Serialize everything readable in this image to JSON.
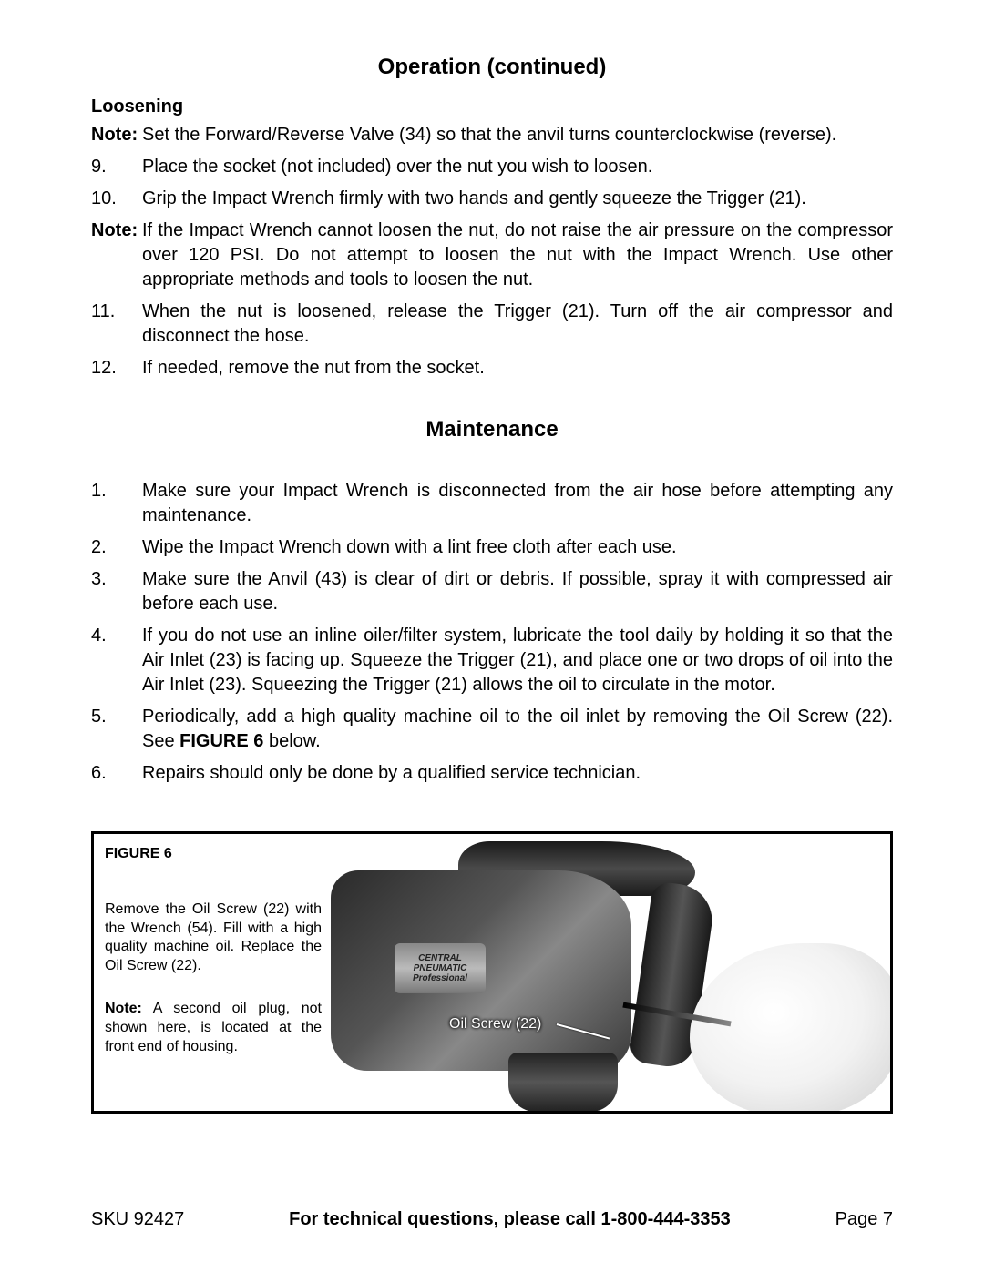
{
  "header_title": "Operation (continued)",
  "loosening": {
    "subhead": "Loosening",
    "note1_label": "Note:",
    "note1_body": "Set the Forward/Reverse Valve (34) so that the anvil turns counterclockwise (reverse).",
    "item9_num": "9.",
    "item9_body": "Place the socket (not included) over the nut you wish to loosen.",
    "item10_num": "10.",
    "item10_body": "Grip the Impact Wrench firmly with two hands and gently squeeze the Trigger (21).",
    "note2_label": "Note:",
    "note2_body": "If the Impact Wrench cannot loosen the nut, do not raise the air pressure on the compressor over 120 PSI.  Do not attempt to loosen the nut with the Impact Wrench.  Use other appropriate methods and tools to loosen the nut.",
    "item11_num": "11.",
    "item11_body": "When the nut is loosened, release the Trigger (21).  Turn off the air compressor and disconnect the hose.",
    "item12_num": "12.",
    "item12_body": "If needed, remove the nut from the socket."
  },
  "maintenance": {
    "title": "Maintenance",
    "item1_num": "1.",
    "item1_body": "Make sure your Impact Wrench is disconnected from the air hose before attempting any maintenance.",
    "item2_num": "2.",
    "item2_body": "Wipe the Impact Wrench down with a lint free cloth after each use.",
    "item3_num": "3.",
    "item3_body": "Make sure the Anvil (43) is clear of dirt or debris.  If possible, spray it with compressed air before each use.",
    "item4_num": "4.",
    "item4_body": "If you do not use an inline oiler/filter system, lubricate the tool daily by holding it so that the Air Inlet (23) is facing up. Squeeze the Trigger (21), and place one or two drops of oil into the Air Inlet (23).  Squeezing the Trigger (21) allows the oil to circulate in the motor.",
    "item5_num": "5.",
    "item5_body_a": "Periodically, add a high quality machine oil to the oil inlet by removing the Oil Screw (22).  See ",
    "item5_body_bold": "FIGURE 6",
    "item5_body_b": " below.",
    "item6_num": "6.",
    "item6_body": "Repairs should only be done by a qualified service technician."
  },
  "figure": {
    "label": "FIGURE 6",
    "para1": "Remove the Oil Screw (22) with the Wrench (54).  Fill with a high quality machine oil.  Replace the Oil Screw (22).",
    "note_bold": "Note:",
    "note_body": " A second oil plug, not shown here, is located at the front end of housing.",
    "callout": "Oil Screw (22)",
    "badge_line1": "CENTRAL",
    "badge_line2": "PNEUMATIC",
    "badge_line3": "Professional"
  },
  "footer": {
    "sku": "SKU 92427",
    "center": "For technical questions, please call 1-800-444-3353",
    "page": "Page 7"
  }
}
